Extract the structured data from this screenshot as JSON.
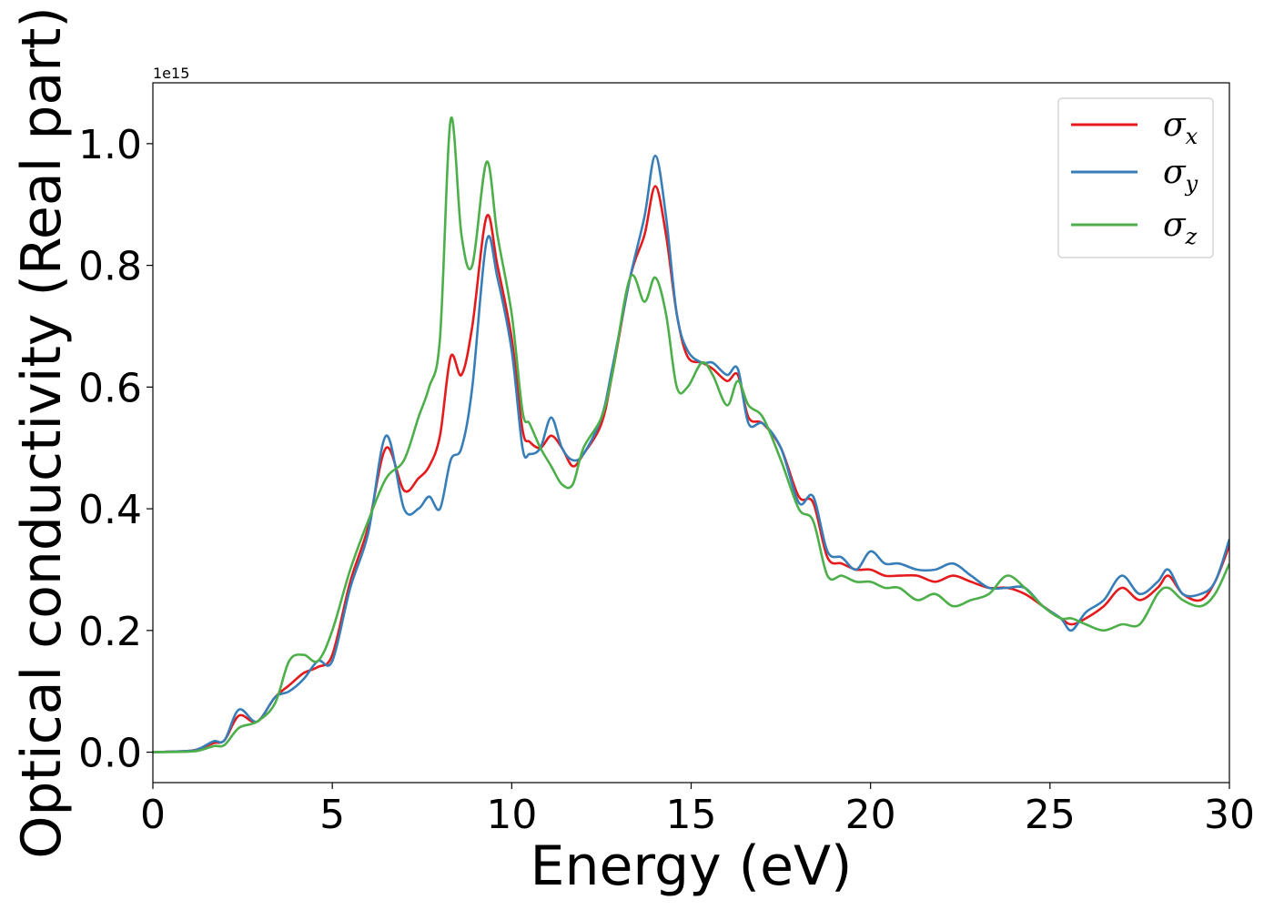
{
  "chart_data": {
    "type": "line",
    "title": "",
    "xlabel": "Energy (eV)",
    "ylabel": "Optical conductivity (Real part)",
    "y_offset_label": "1e15",
    "xlim": [
      0,
      30
    ],
    "ylim": [
      -0.05,
      1.1
    ],
    "xticks": [
      0,
      5,
      10,
      15,
      20,
      25,
      30
    ],
    "xtick_labels": [
      "0",
      "5",
      "10",
      "15",
      "20",
      "25",
      "30"
    ],
    "yticks": [
      0.0,
      0.2,
      0.4,
      0.6,
      0.8,
      1.0
    ],
    "ytick_labels": [
      "0.0",
      "0.2",
      "0.4",
      "0.6",
      "0.8",
      "1.0"
    ],
    "grid": false,
    "legend_position": "top-right",
    "series": [
      {
        "name": "σx",
        "symbol": "σ",
        "subscript": "x",
        "color": "#e41a1c",
        "x": [
          0,
          1,
          1.3,
          1.7,
          2.0,
          2.4,
          2.9,
          3.4,
          3.8,
          4.2,
          4.6,
          5.0,
          5.5,
          6.0,
          6.5,
          7.0,
          7.4,
          7.7,
          8.0,
          8.3,
          8.6,
          8.9,
          9.3,
          9.6,
          10.0,
          10.3,
          10.5,
          10.8,
          11.1,
          11.4,
          11.7,
          12.0,
          12.5,
          12.8,
          13.3,
          13.7,
          14.0,
          14.3,
          14.6,
          14.9,
          15.3,
          15.6,
          16.0,
          16.3,
          16.6,
          17.0,
          17.5,
          18.0,
          18.4,
          18.8,
          19.2,
          19.6,
          20.0,
          20.4,
          20.8,
          21.3,
          21.8,
          22.3,
          22.8,
          23.3,
          23.8,
          24.3,
          24.8,
          25.3,
          25.6,
          26.0,
          26.5,
          27.0,
          27.5,
          28.0,
          28.3,
          28.7,
          29.2,
          29.6,
          30.0
        ],
        "y": [
          0.0,
          0.002,
          0.006,
          0.015,
          0.02,
          0.06,
          0.05,
          0.09,
          0.11,
          0.13,
          0.14,
          0.16,
          0.28,
          0.37,
          0.5,
          0.43,
          0.45,
          0.47,
          0.52,
          0.65,
          0.62,
          0.7,
          0.88,
          0.8,
          0.68,
          0.53,
          0.51,
          0.5,
          0.52,
          0.5,
          0.47,
          0.49,
          0.54,
          0.62,
          0.78,
          0.85,
          0.93,
          0.85,
          0.72,
          0.65,
          0.64,
          0.63,
          0.61,
          0.62,
          0.55,
          0.54,
          0.5,
          0.42,
          0.41,
          0.32,
          0.31,
          0.3,
          0.3,
          0.29,
          0.29,
          0.29,
          0.28,
          0.29,
          0.28,
          0.27,
          0.27,
          0.26,
          0.24,
          0.22,
          0.21,
          0.22,
          0.24,
          0.27,
          0.25,
          0.27,
          0.29,
          0.26,
          0.25,
          0.28,
          0.34
        ]
      },
      {
        "name": "σy",
        "symbol": "σ",
        "subscript": "y",
        "color": "#377eb8",
        "x": [
          0,
          1,
          1.3,
          1.7,
          2.0,
          2.4,
          2.9,
          3.4,
          3.8,
          4.2,
          4.6,
          5.0,
          5.5,
          6.0,
          6.5,
          7.0,
          7.4,
          7.7,
          8.0,
          8.3,
          8.6,
          8.9,
          9.3,
          9.6,
          10.0,
          10.3,
          10.5,
          10.8,
          11.1,
          11.4,
          11.7,
          12.0,
          12.5,
          12.8,
          13.3,
          13.7,
          14.0,
          14.3,
          14.6,
          14.9,
          15.3,
          15.6,
          16.0,
          16.3,
          16.6,
          17.0,
          17.5,
          18.0,
          18.4,
          18.8,
          19.2,
          19.6,
          20.0,
          20.4,
          20.8,
          21.3,
          21.8,
          22.3,
          22.8,
          23.3,
          23.8,
          24.3,
          24.8,
          25.3,
          25.6,
          26.0,
          26.5,
          27.0,
          27.5,
          28.0,
          28.3,
          28.7,
          29.2,
          29.6,
          30.0
        ],
        "y": [
          0.0,
          0.002,
          0.006,
          0.018,
          0.02,
          0.07,
          0.05,
          0.09,
          0.1,
          0.12,
          0.15,
          0.15,
          0.27,
          0.36,
          0.52,
          0.4,
          0.4,
          0.42,
          0.4,
          0.48,
          0.5,
          0.6,
          0.84,
          0.78,
          0.66,
          0.5,
          0.49,
          0.5,
          0.55,
          0.5,
          0.48,
          0.49,
          0.55,
          0.63,
          0.78,
          0.88,
          0.98,
          0.88,
          0.72,
          0.66,
          0.64,
          0.64,
          0.62,
          0.63,
          0.54,
          0.54,
          0.5,
          0.41,
          0.42,
          0.33,
          0.32,
          0.3,
          0.33,
          0.31,
          0.31,
          0.3,
          0.3,
          0.31,
          0.29,
          0.27,
          0.27,
          0.27,
          0.24,
          0.22,
          0.2,
          0.23,
          0.25,
          0.29,
          0.26,
          0.28,
          0.3,
          0.26,
          0.26,
          0.28,
          0.35
        ]
      },
      {
        "name": "σz",
        "symbol": "σ",
        "subscript": "z",
        "color": "#4daf4a",
        "x": [
          0,
          1,
          1.3,
          1.7,
          2.0,
          2.4,
          2.9,
          3.4,
          3.8,
          4.2,
          4.6,
          5.0,
          5.5,
          6.0,
          6.5,
          7.0,
          7.4,
          7.7,
          8.0,
          8.3,
          8.6,
          8.9,
          9.3,
          9.6,
          10.0,
          10.3,
          10.5,
          10.8,
          11.1,
          11.4,
          11.7,
          12.0,
          12.5,
          12.8,
          13.3,
          13.7,
          14.0,
          14.3,
          14.6,
          14.9,
          15.3,
          15.6,
          16.0,
          16.3,
          16.6,
          17.0,
          17.5,
          18.0,
          18.4,
          18.8,
          19.2,
          19.6,
          20.0,
          20.4,
          20.8,
          21.3,
          21.8,
          22.3,
          22.8,
          23.3,
          23.8,
          24.3,
          24.8,
          25.3,
          25.6,
          26.0,
          26.5,
          27.0,
          27.5,
          28.0,
          28.3,
          28.7,
          29.2,
          29.6,
          30.0
        ],
        "y": [
          0.0,
          0.001,
          0.003,
          0.01,
          0.012,
          0.04,
          0.05,
          0.08,
          0.15,
          0.16,
          0.15,
          0.2,
          0.3,
          0.38,
          0.45,
          0.48,
          0.55,
          0.6,
          0.68,
          1.04,
          0.85,
          0.8,
          0.97,
          0.85,
          0.72,
          0.56,
          0.54,
          0.5,
          0.47,
          0.44,
          0.44,
          0.5,
          0.55,
          0.62,
          0.78,
          0.74,
          0.78,
          0.72,
          0.6,
          0.6,
          0.64,
          0.62,
          0.57,
          0.61,
          0.57,
          0.55,
          0.48,
          0.4,
          0.38,
          0.29,
          0.29,
          0.28,
          0.28,
          0.27,
          0.27,
          0.25,
          0.26,
          0.24,
          0.25,
          0.26,
          0.29,
          0.27,
          0.24,
          0.22,
          0.22,
          0.21,
          0.2,
          0.21,
          0.21,
          0.26,
          0.27,
          0.25,
          0.24,
          0.26,
          0.31
        ]
      }
    ]
  }
}
